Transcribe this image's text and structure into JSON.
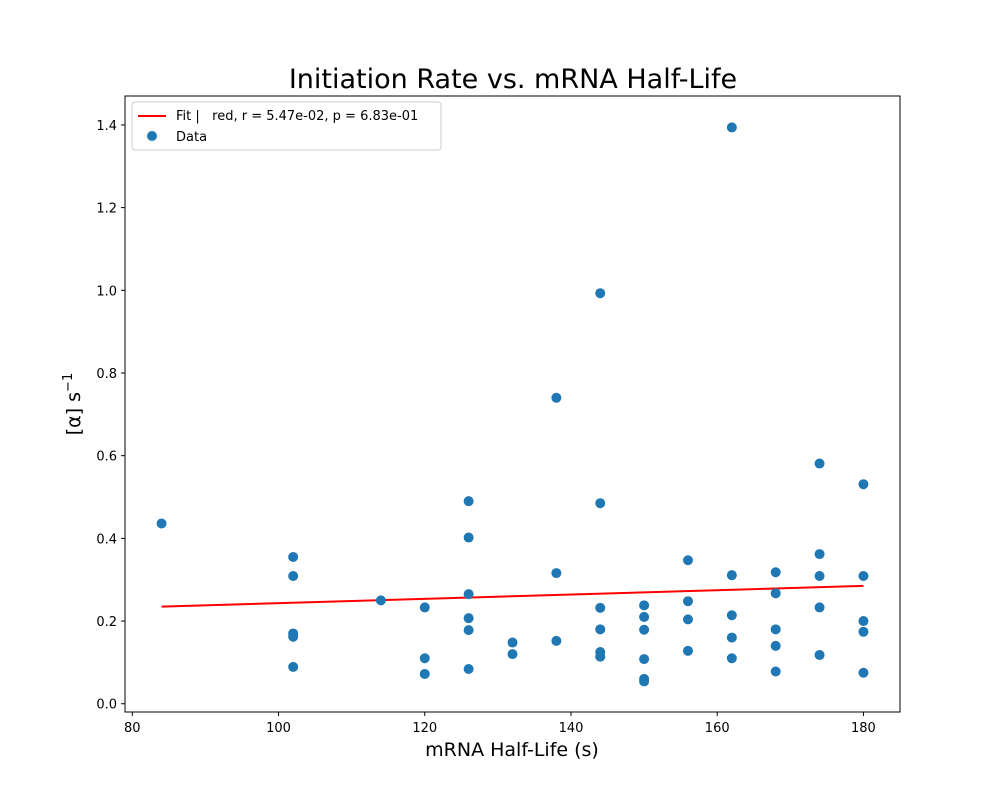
{
  "chart_data": {
    "type": "scatter",
    "title": "Initiation Rate vs. mRNA Half-Life",
    "xlabel": "mRNA Half-Life (s)",
    "ylabel_main": "[α] s",
    "ylabel_sup": "−1",
    "xlim": [
      79,
      185
    ],
    "ylim": [
      -0.02,
      1.47
    ],
    "xticks": [
      80,
      100,
      120,
      140,
      160,
      180
    ],
    "yticks": [
      0.0,
      0.2,
      0.4,
      0.6,
      0.8,
      1.0,
      1.2,
      1.4
    ],
    "grid": false,
    "legend_position": "top-left",
    "colors": {
      "data": "#1f77b4",
      "fit": "#ff0000"
    },
    "series": [
      {
        "name": "Fit |   red, r = 5.47e-02, p = 6.83e-01",
        "kind": "line",
        "x": [
          84,
          180
        ],
        "y": [
          0.235,
          0.285
        ]
      },
      {
        "name": "Data",
        "kind": "scatter",
        "x": [
          84,
          102,
          102,
          102,
          102,
          102,
          114,
          120,
          120,
          120,
          126,
          126,
          126,
          126,
          126,
          126,
          132,
          132,
          138,
          138,
          138,
          144,
          144,
          144,
          144,
          144,
          144,
          144,
          150,
          150,
          150,
          150,
          150,
          150,
          156,
          156,
          156,
          156,
          162,
          162,
          162,
          162,
          162,
          168,
          168,
          168,
          168,
          168,
          174,
          174,
          174,
          174,
          174,
          180,
          180,
          180,
          180,
          180
        ],
        "y": [
          0.436,
          0.355,
          0.309,
          0.17,
          0.162,
          0.089,
          0.25,
          0.233,
          0.11,
          0.072,
          0.49,
          0.402,
          0.265,
          0.207,
          0.178,
          0.084,
          0.148,
          0.12,
          0.74,
          0.316,
          0.152,
          0.993,
          0.485,
          0.232,
          0.18,
          0.125,
          0.114,
          0.114,
          0.238,
          0.21,
          0.179,
          0.108,
          0.06,
          0.054,
          0.347,
          0.248,
          0.204,
          0.128,
          1.394,
          0.311,
          0.214,
          0.16,
          0.11,
          0.318,
          0.267,
          0.18,
          0.14,
          0.078,
          0.581,
          0.362,
          0.309,
          0.233,
          0.118,
          0.531,
          0.309,
          0.2,
          0.174,
          0.075
        ]
      }
    ]
  }
}
